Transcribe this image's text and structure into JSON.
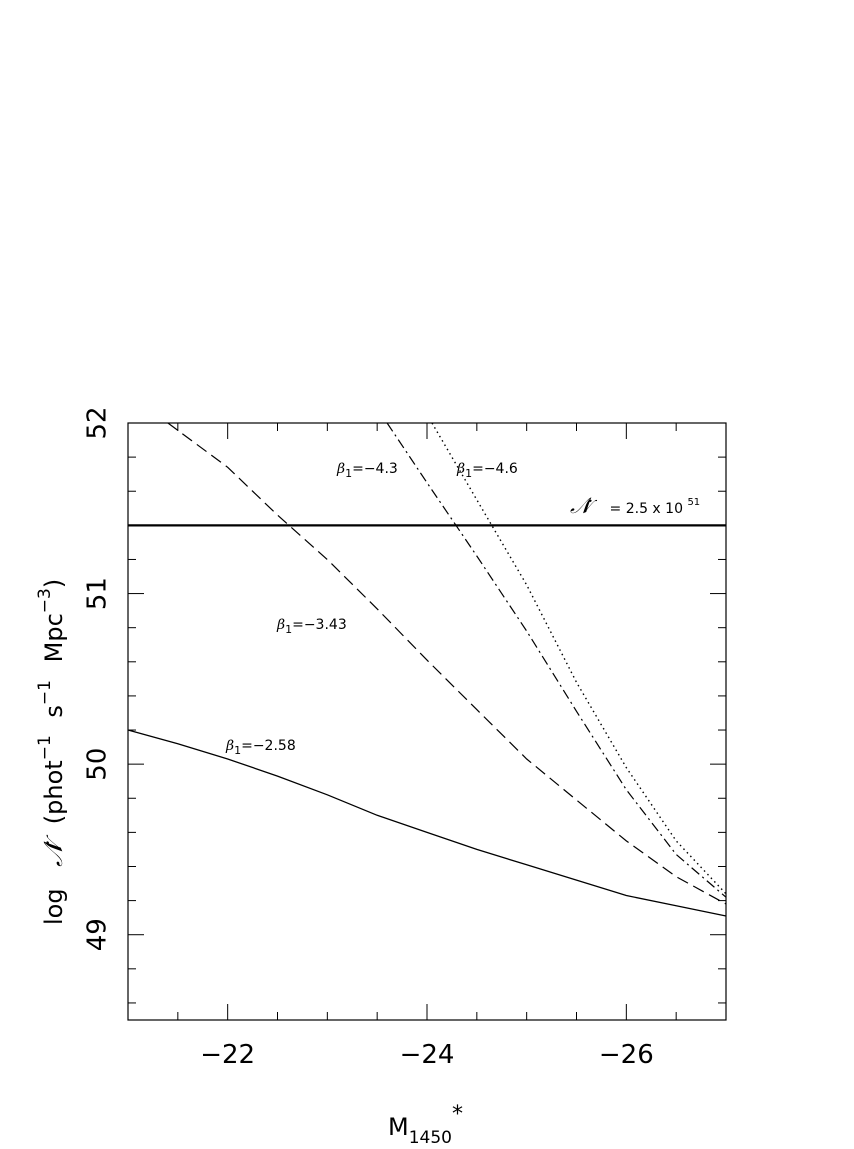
{
  "chart_data": {
    "type": "line",
    "xlabel": {
      "base": "M",
      "subscript": "1450",
      "superscript": "*"
    },
    "ylabel": {
      "prefix": "log",
      "symbol": "𝒩̇",
      "paren_open": "(",
      "w1": "phot",
      "e1": "−1",
      "w2": "s",
      "e2": "−1",
      "w3": "Mpc",
      "e3": "−3",
      "paren_close": ")"
    },
    "xlim": [
      -21,
      -27
    ],
    "ylim": [
      48.5,
      52
    ],
    "xticks": [
      {
        "value": -22,
        "label": "−22"
      },
      {
        "value": -24,
        "label": "−24"
      },
      {
        "value": -26,
        "label": "−26"
      }
    ],
    "yticks": [
      {
        "value": 49,
        "label": "49"
      },
      {
        "value": 50,
        "label": "50"
      },
      {
        "value": 51,
        "label": "51"
      },
      {
        "value": 52,
        "label": "52"
      }
    ],
    "reference_line": {
      "y": 51.4,
      "label": {
        "symbol": "𝒩̇",
        "text": "= 2.5 x 10",
        "exp": "51"
      }
    },
    "series": [
      {
        "style": "solid",
        "label": {
          "greek": "β",
          "sub": "1",
          "value": "=−2.58"
        },
        "x": [
          -21,
          -21.5,
          -22,
          -22.5,
          -23,
          -23.5,
          -24,
          -24.5,
          -25,
          -25.5,
          -26,
          -26.5,
          -27
        ],
        "y": [
          50.2,
          50.12,
          50.03,
          49.93,
          49.82,
          49.7,
          49.6,
          49.5,
          49.41,
          49.32,
          49.23,
          49.17,
          49.11
        ]
      },
      {
        "style": "dashed",
        "label": {
          "greek": "β",
          "sub": "1",
          "value": "=−3.43"
        },
        "x": [
          -21.4,
          -22,
          -22.5,
          -23,
          -23.5,
          -24,
          -24.5,
          -25,
          -25.5,
          -26,
          -26.5,
          -27
        ],
        "y": [
          52.0,
          51.74,
          51.46,
          51.2,
          50.91,
          50.61,
          50.32,
          50.03,
          49.79,
          49.55,
          49.34,
          49.18
        ]
      },
      {
        "style": "dashdot",
        "label": {
          "greek": "β",
          "sub": "1",
          "value": "=−4.3"
        },
        "x": [
          -23.6,
          -24,
          -24.5,
          -25,
          -25.5,
          -26,
          -26.5,
          -27
        ],
        "y": [
          52.0,
          51.65,
          51.22,
          50.78,
          50.31,
          49.85,
          49.47,
          49.22
        ]
      },
      {
        "style": "dotted",
        "label": {
          "greek": "β",
          "sub": "1",
          "value": "=−4.6"
        },
        "x": [
          -24.05,
          -24.5,
          -25,
          -25.5,
          -26,
          -26.5,
          -27
        ],
        "y": [
          52.0,
          51.55,
          51.05,
          50.48,
          49.98,
          49.55,
          49.24
        ]
      }
    ]
  }
}
